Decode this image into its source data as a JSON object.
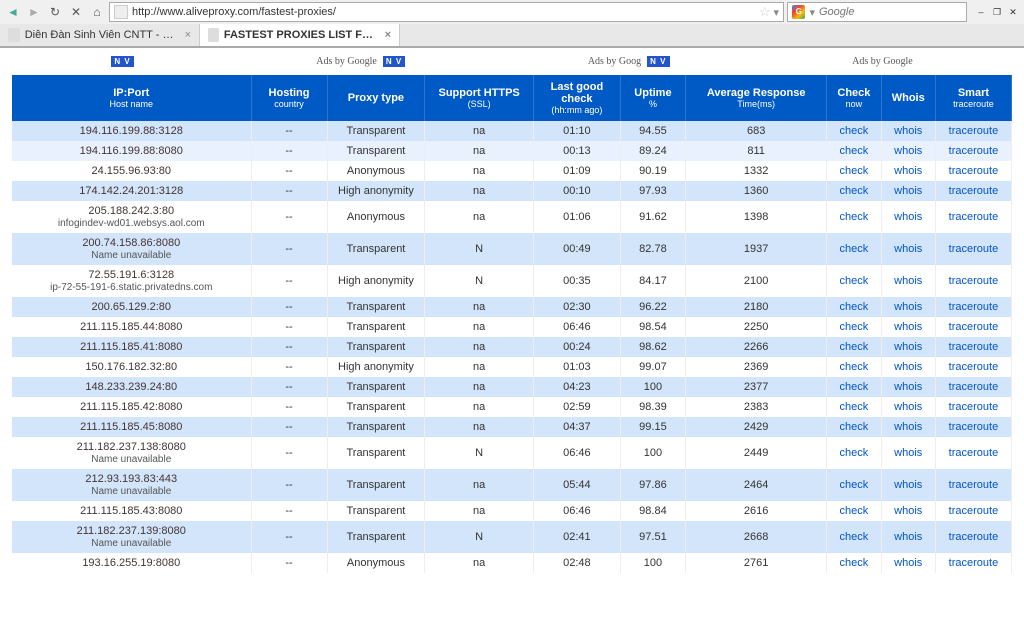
{
  "browser": {
    "url": "http://www.aliveproxy.com/fastest-proxies/",
    "search_placeholder": "Google",
    "tabs": [
      {
        "title": "Diễn Đàn Sinh Viên CNTT - Gởi Đề ...",
        "active": false
      },
      {
        "title": "FASTEST PROXIES LIST FREE . FAS...",
        "active": true
      }
    ]
  },
  "ads": {
    "label": "Ads by Google",
    "label2": "Ads by Goog",
    "badge": "N V"
  },
  "table": {
    "headers": {
      "ip": "IP:Port",
      "ip_sub": "Host name",
      "country": "Hosting",
      "country_sub": "country",
      "type": "Proxy type",
      "https": "Support HTTPS",
      "https_sub": "(SSL)",
      "lastcheck": "Last good check",
      "lastcheck_sub": "(hh:mm ago)",
      "uptime": "Uptime",
      "uptime_sub": "%",
      "response": "Average Response",
      "response_sub": "Time(ms)",
      "check": "Check",
      "check_sub": "now",
      "whois": "Whois",
      "trace": "Smart",
      "trace_sub": "traceroute"
    },
    "check_label": "check",
    "whois_label": "whois",
    "trace_label": "traceroute",
    "rows": [
      {
        "ip": "194.116.199.88:3128",
        "host": "",
        "country": "--",
        "type": "Transparent",
        "https": "na",
        "last": "01:10",
        "uptime": "94.55",
        "resp": "683",
        "shade": 0
      },
      {
        "ip": "194.116.199.88:8080",
        "host": "",
        "country": "--",
        "type": "Transparent",
        "https": "na",
        "last": "00:13",
        "uptime": "89.24",
        "resp": "811",
        "shade": 2
      },
      {
        "ip": "24.155.96.93:80",
        "host": "",
        "country": "--",
        "type": "Anonymous",
        "https": "na",
        "last": "01:09",
        "uptime": "90.19",
        "resp": "1332",
        "shade": 1
      },
      {
        "ip": "174.142.24.201:3128",
        "host": "",
        "country": "--",
        "type": "High anonymity",
        "https": "na",
        "last": "00:10",
        "uptime": "97.93",
        "resp": "1360",
        "shade": 0
      },
      {
        "ip": "205.188.242.3:80",
        "host": "infogindev-wd01.websys.aol.com",
        "country": "--",
        "type": "Anonymous",
        "https": "na",
        "last": "01:06",
        "uptime": "91.62",
        "resp": "1398",
        "shade": 1
      },
      {
        "ip": "200.74.158.86:8080",
        "host": "Name unavailable",
        "country": "--",
        "type": "Transparent",
        "https": "N",
        "last": "00:49",
        "uptime": "82.78",
        "resp": "1937",
        "shade": 0
      },
      {
        "ip": "72.55.191.6:3128",
        "host": "ip-72-55-191-6.static.privatedns.com",
        "country": "--",
        "type": "High anonymity",
        "https": "N",
        "last": "00:35",
        "uptime": "84.17",
        "resp": "2100",
        "shade": 1
      },
      {
        "ip": "200.65.129.2:80",
        "host": "",
        "country": "--",
        "type": "Transparent",
        "https": "na",
        "last": "02:30",
        "uptime": "96.22",
        "resp": "2180",
        "shade": 0
      },
      {
        "ip": "211.115.185.44:8080",
        "host": "",
        "country": "--",
        "type": "Transparent",
        "https": "na",
        "last": "06:46",
        "uptime": "98.54",
        "resp": "2250",
        "shade": 1
      },
      {
        "ip": "211.115.185.41:8080",
        "host": "",
        "country": "--",
        "type": "Transparent",
        "https": "na",
        "last": "00:24",
        "uptime": "98.62",
        "resp": "2266",
        "shade": 0
      },
      {
        "ip": "150.176.182.32:80",
        "host": "",
        "country": "--",
        "type": "High anonymity",
        "https": "na",
        "last": "01:03",
        "uptime": "99.07",
        "resp": "2369",
        "shade": 1
      },
      {
        "ip": "148.233.239.24:80",
        "host": "",
        "country": "--",
        "type": "Transparent",
        "https": "na",
        "last": "04:23",
        "uptime": "100",
        "resp": "2377",
        "shade": 0
      },
      {
        "ip": "211.115.185.42:8080",
        "host": "",
        "country": "--",
        "type": "Transparent",
        "https": "na",
        "last": "02:59",
        "uptime": "98.39",
        "resp": "2383",
        "shade": 1
      },
      {
        "ip": "211.115.185.45:8080",
        "host": "",
        "country": "--",
        "type": "Transparent",
        "https": "na",
        "last": "04:37",
        "uptime": "99.15",
        "resp": "2429",
        "shade": 0
      },
      {
        "ip": "211.182.237.138:8080",
        "host": "Name unavailable",
        "country": "--",
        "type": "Transparent",
        "https": "N",
        "last": "06:46",
        "uptime": "100",
        "resp": "2449",
        "shade": 1
      },
      {
        "ip": "212.93.193.83:443",
        "host": "Name unavailable",
        "country": "--",
        "type": "Transparent",
        "https": "na",
        "last": "05:44",
        "uptime": "97.86",
        "resp": "2464",
        "shade": 0
      },
      {
        "ip": "211.115.185.43:8080",
        "host": "",
        "country": "--",
        "type": "Transparent",
        "https": "na",
        "last": "06:46",
        "uptime": "98.84",
        "resp": "2616",
        "shade": 1
      },
      {
        "ip": "211.182.237.139:8080",
        "host": "Name unavailable",
        "country": "--",
        "type": "Transparent",
        "https": "N",
        "last": "02:41",
        "uptime": "97.51",
        "resp": "2668",
        "shade": 0
      },
      {
        "ip": "193.16.255.19:8080",
        "host": "",
        "country": "--",
        "type": "Anonymous",
        "https": "na",
        "last": "02:48",
        "uptime": "100",
        "resp": "2761",
        "shade": 1
      }
    ]
  }
}
